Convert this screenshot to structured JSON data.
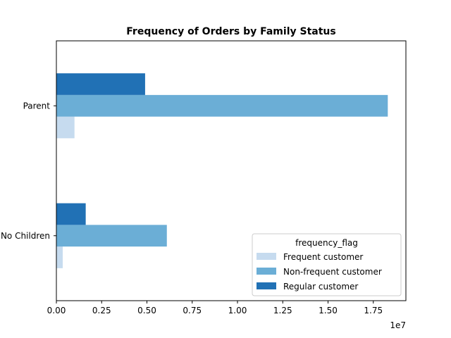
{
  "chart_data": {
    "type": "bar",
    "orientation": "horizontal",
    "title": "Frequency of Orders by Family Status",
    "xlabel": "",
    "ylabel": "",
    "x_offset_label": "1e7",
    "categories": [
      "No Children",
      "Parent"
    ],
    "series": [
      {
        "name": "Frequent customer",
        "color": "#c6dbef",
        "values": [
          350000,
          1000000
        ]
      },
      {
        "name": "Non-frequent customer",
        "color": "#6baed6",
        "values": [
          6100000,
          18300000
        ]
      },
      {
        "name": "Regular customer",
        "color": "#2171b5",
        "values": [
          1620000,
          4900000
        ]
      }
    ],
    "xlim": [
      0,
      19300000
    ],
    "x_ticks": [
      0,
      2500000,
      5000000,
      7500000,
      10000000,
      12500000,
      15000000,
      17500000
    ],
    "x_tick_labels": [
      "0.00",
      "0.25",
      "0.50",
      "0.75",
      "1.00",
      "1.25",
      "1.50",
      "1.75"
    ],
    "legend": {
      "title": "frequency_flag",
      "placement": "lower-right"
    },
    "grid": false
  }
}
